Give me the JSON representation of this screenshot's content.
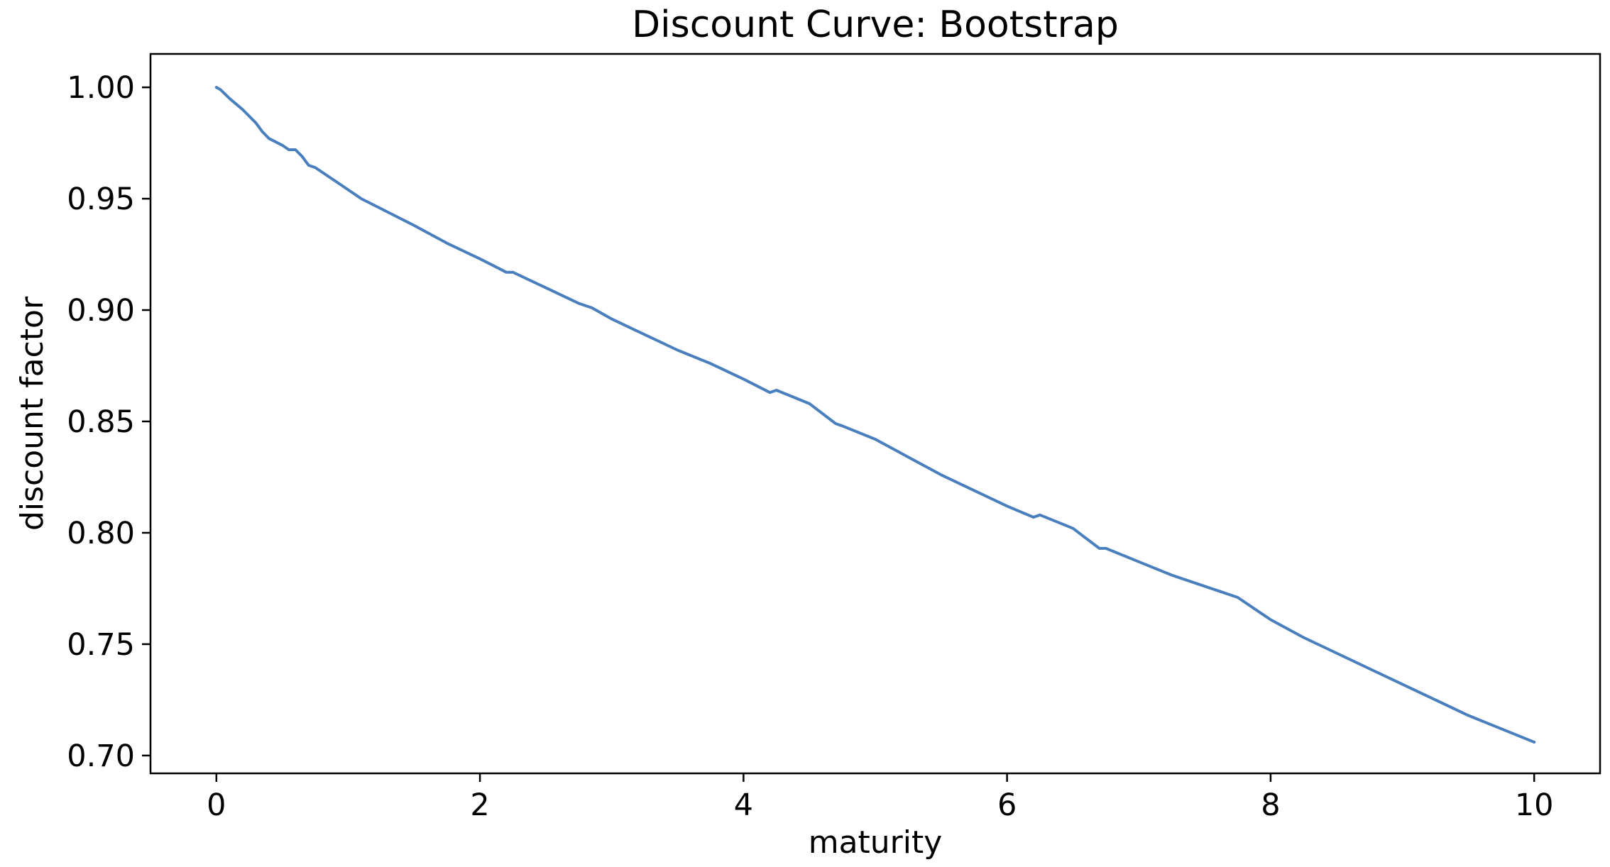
{
  "chart_data": {
    "type": "line",
    "title": "Discount Curve: Bootstrap",
    "xlabel": "maturity",
    "ylabel": "discount factor",
    "xlim": [
      -0.5,
      10.5
    ],
    "ylim": [
      0.692,
      1.015
    ],
    "xticks": [
      0,
      2,
      4,
      6,
      8,
      10
    ],
    "xtick_labels": [
      "0",
      "2",
      "4",
      "6",
      "8",
      "10"
    ],
    "yticks": [
      0.7,
      0.75,
      0.8,
      0.85,
      0.9,
      0.95,
      1.0
    ],
    "ytick_labels": [
      "0.70",
      "0.75",
      "0.80",
      "0.85",
      "0.90",
      "0.95",
      "1.00"
    ],
    "grid": false,
    "legend": "none",
    "series": [
      {
        "color": "#4a7fbd",
        "x": [
          0,
          0.03,
          0.1,
          0.2,
          0.3,
          0.35,
          0.4,
          0.5,
          0.55,
          0.6,
          0.65,
          0.7,
          0.75,
          0.8,
          0.9,
          1.0,
          1.1,
          1.2,
          1.3,
          1.5,
          1.75,
          2.0,
          2.2,
          2.25,
          2.5,
          2.75,
          2.85,
          3.0,
          3.25,
          3.5,
          3.75,
          4.0,
          4.2,
          4.25,
          4.5,
          4.7,
          4.75,
          5.0,
          5.25,
          5.5,
          5.75,
          6.0,
          6.2,
          6.25,
          6.5,
          6.7,
          6.75,
          7.0,
          7.25,
          7.5,
          7.75,
          8.0,
          8.25,
          8.5,
          8.75,
          9.0,
          9.25,
          9.5,
          9.75,
          10.0
        ],
        "y": [
          1.0,
          0.999,
          0.995,
          0.99,
          0.984,
          0.98,
          0.977,
          0.974,
          0.972,
          0.972,
          0.969,
          0.965,
          0.964,
          0.962,
          0.958,
          0.954,
          0.95,
          0.947,
          0.944,
          0.938,
          0.93,
          0.923,
          0.917,
          0.917,
          0.91,
          0.903,
          0.901,
          0.896,
          0.889,
          0.882,
          0.876,
          0.869,
          0.863,
          0.864,
          0.858,
          0.849,
          0.848,
          0.842,
          0.834,
          0.826,
          0.819,
          0.812,
          0.807,
          0.808,
          0.802,
          0.793,
          0.793,
          0.787,
          0.781,
          0.776,
          0.771,
          0.761,
          0.753,
          0.746,
          0.739,
          0.732,
          0.725,
          0.718,
          0.712,
          0.706
        ]
      }
    ]
  }
}
